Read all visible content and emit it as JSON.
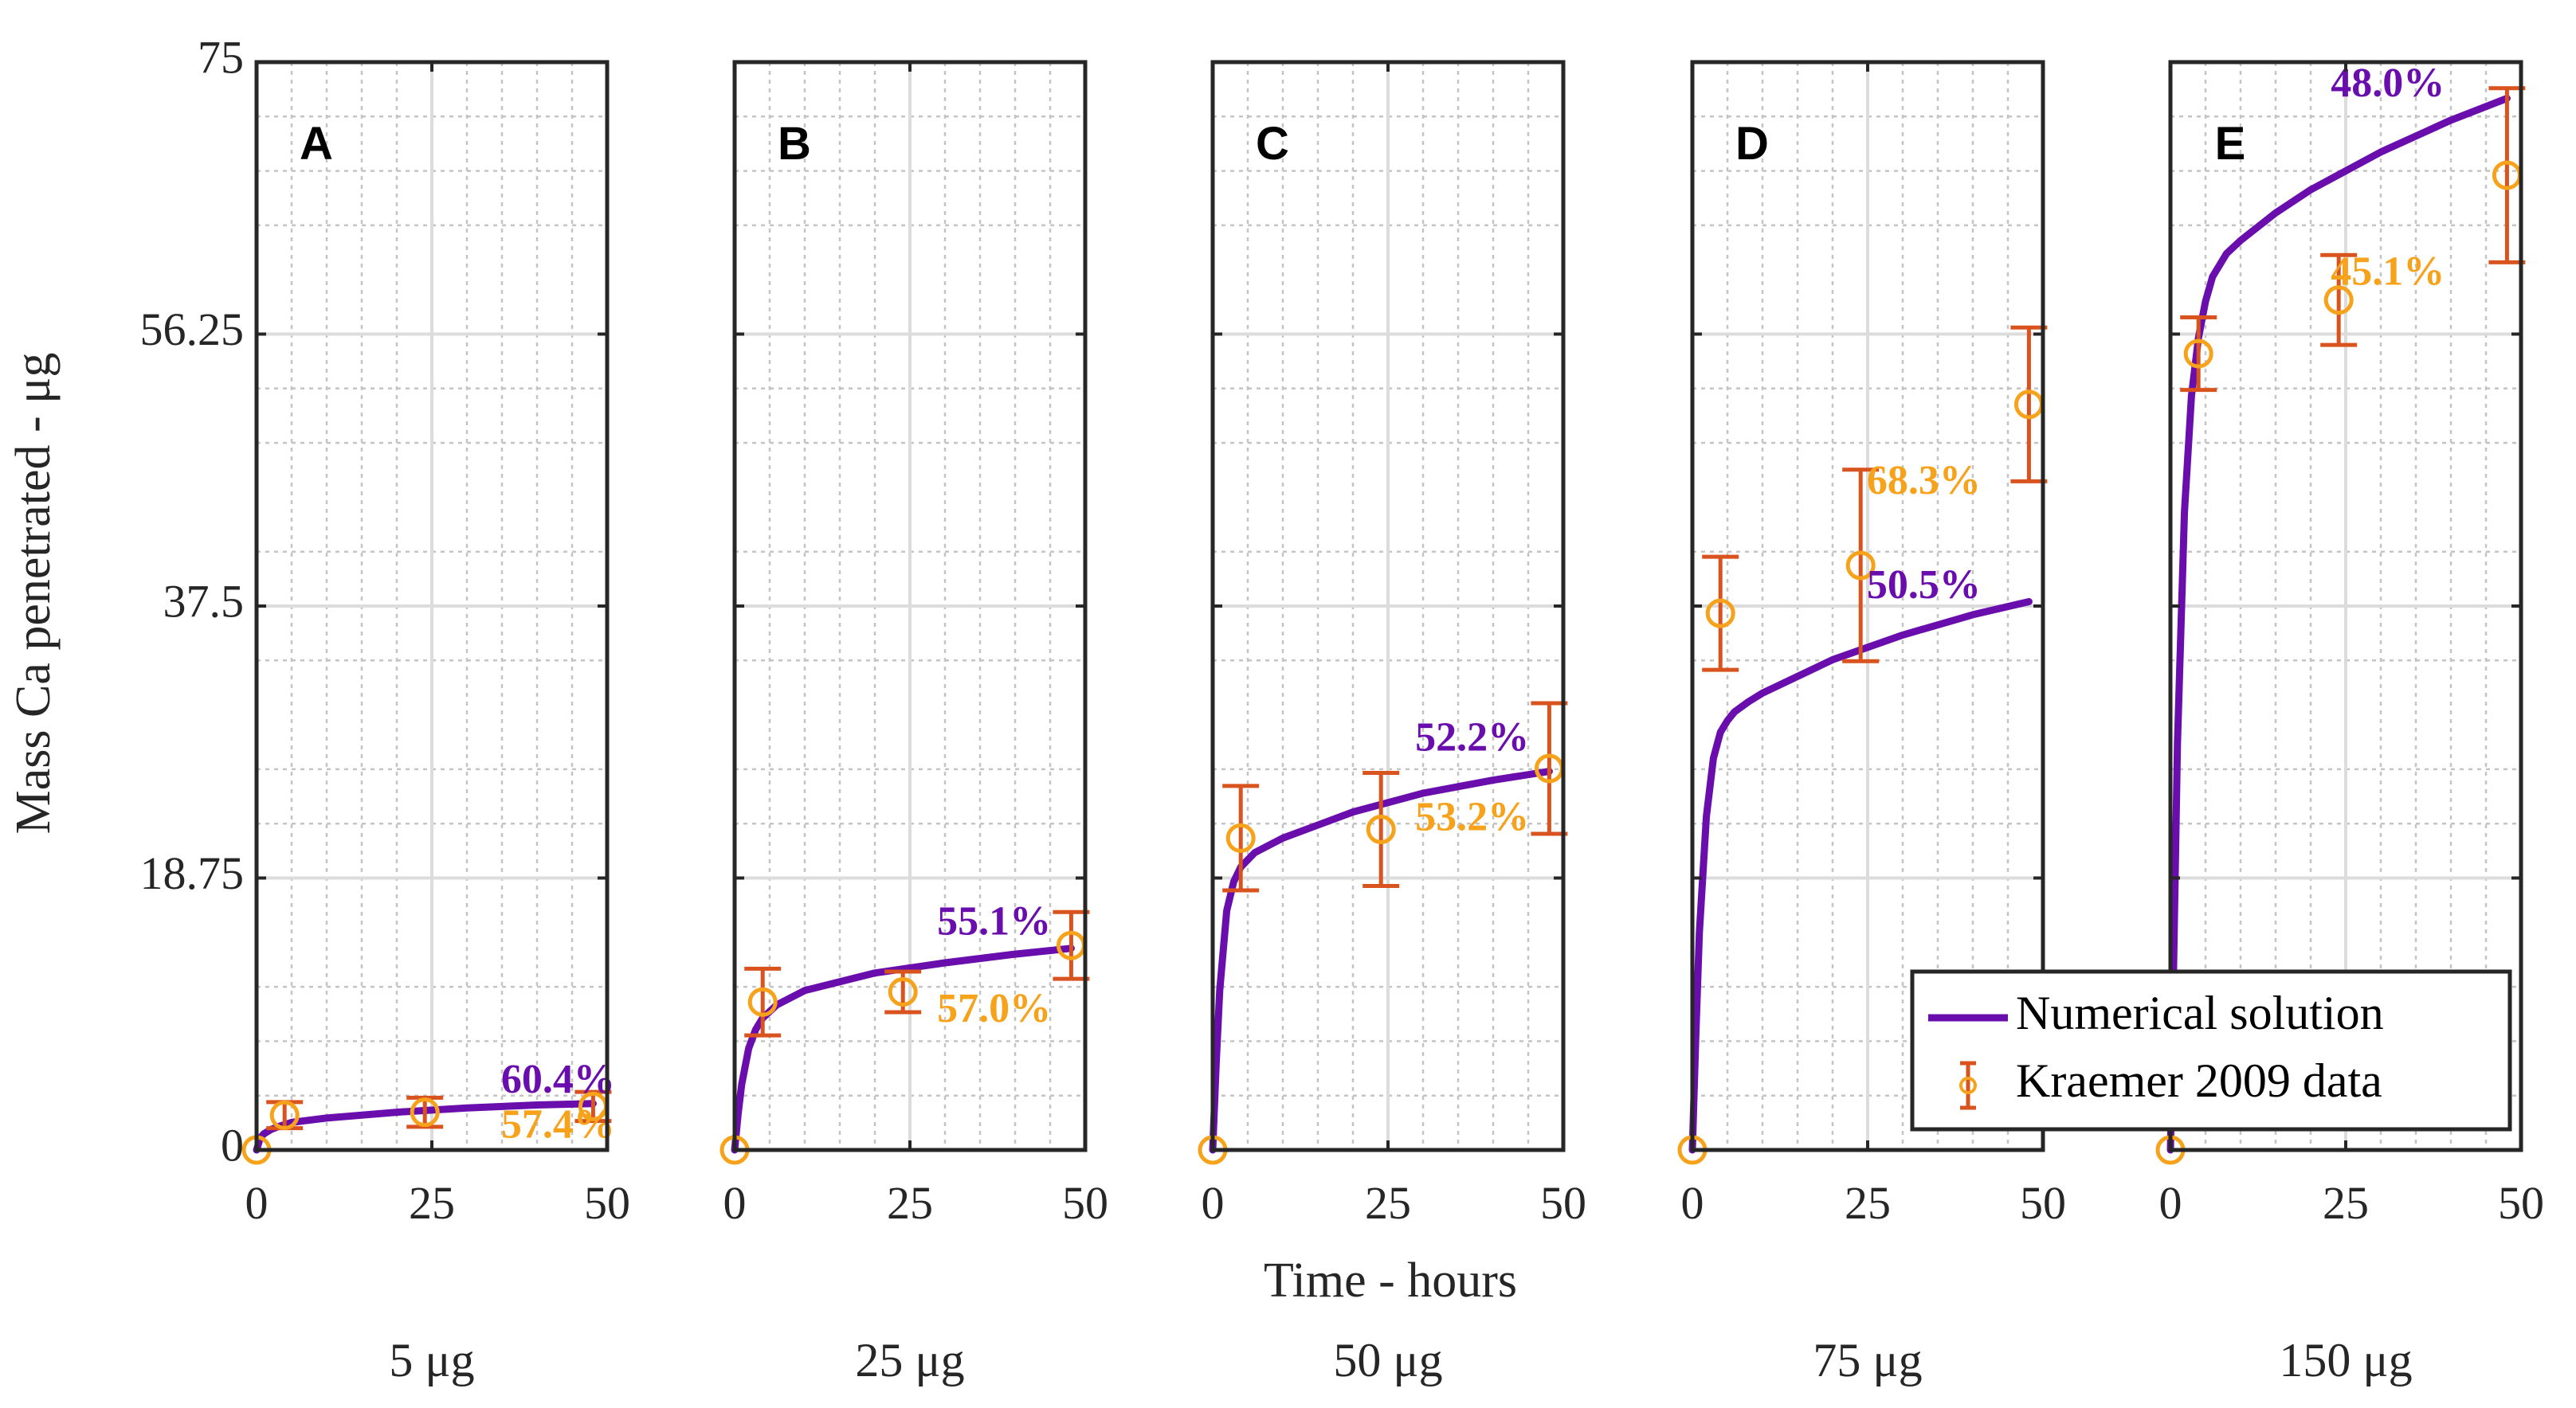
{
  "chart_data": {
    "type": "line",
    "ylabel": "Mass Ca penetrated - μg",
    "xlabel": "Time - hours",
    "ylim": [
      0,
      75
    ],
    "yticks": [
      "0",
      "18.75",
      "37.5",
      "56.25",
      "75"
    ],
    "xlim": [
      0,
      50
    ],
    "xticks": [
      "0",
      "25",
      "50"
    ],
    "grid": true,
    "legend": {
      "placement": "bottom-right of panel E",
      "entries": [
        {
          "name": "Numerical solution",
          "color": "#6a0dad",
          "style": "line"
        },
        {
          "name": "Kraemer 2009 data",
          "color": "#f7a21b",
          "errorbar_color": "#d9531e",
          "style": "errorbar-circle"
        }
      ]
    },
    "panels": [
      {
        "letter": "A",
        "dose_label": "5 μg",
        "numerical": {
          "x": [
            0,
            0.5,
            1,
            2,
            3,
            5,
            10,
            20,
            30,
            40,
            48
          ],
          "y": [
            0,
            0.8,
            1.1,
            1.4,
            1.6,
            1.9,
            2.2,
            2.6,
            2.9,
            3.1,
            3.2
          ]
        },
        "kraemer": [
          {
            "x": 0,
            "y": 0,
            "err": 0
          },
          {
            "x": 4,
            "y": 2.4,
            "err": 0.9
          },
          {
            "x": 24,
            "y": 2.6,
            "err": 1.0
          },
          {
            "x": 48,
            "y": 3.0,
            "err": 1.0
          }
        ],
        "annotations": [
          {
            "text": "60.4%",
            "x": 43,
            "y": 4.6,
            "series": "numerical"
          },
          {
            "text": "57.4%",
            "x": 43,
            "y": 1.5,
            "series": "kraemer"
          }
        ]
      },
      {
        "letter": "B",
        "dose_label": "25 μg",
        "numerical": {
          "x": [
            0,
            0.5,
            1,
            2,
            3,
            4,
            6,
            10,
            20,
            30,
            40,
            48
          ],
          "y": [
            0,
            2.5,
            4.5,
            7.0,
            8.3,
            9.1,
            10.0,
            11.0,
            12.2,
            12.9,
            13.5,
            13.9
          ]
        },
        "kraemer": [
          {
            "x": 0,
            "y": 0,
            "err": 0
          },
          {
            "x": 4,
            "y": 10.2,
            "err": 2.3
          },
          {
            "x": 24,
            "y": 10.9,
            "err": 1.4
          },
          {
            "x": 48,
            "y": 14.1,
            "err": 2.3
          }
        ],
        "annotations": [
          {
            "text": "55.1%",
            "x": 37,
            "y": 15.5,
            "series": "numerical"
          },
          {
            "text": "57.0%",
            "x": 37,
            "y": 9.5,
            "series": "kraemer"
          }
        ]
      },
      {
        "letter": "C",
        "dose_label": "50 μg",
        "numerical": {
          "x": [
            0,
            0.5,
            1,
            2,
            3,
            4,
            6,
            10,
            20,
            30,
            40,
            48
          ],
          "y": [
            0,
            6,
            11,
            16.5,
            18.5,
            19.5,
            20.5,
            21.5,
            23.3,
            24.6,
            25.5,
            26.1
          ]
        },
        "kraemer": [
          {
            "x": 0,
            "y": 0,
            "err": 0
          },
          {
            "x": 4,
            "y": 21.5,
            "err": 3.6
          },
          {
            "x": 24,
            "y": 22.1,
            "err": 3.9
          },
          {
            "x": 48,
            "y": 26.3,
            "err": 4.5
          }
        ],
        "annotations": [
          {
            "text": "52.2%",
            "x": 37,
            "y": 28.2,
            "series": "numerical"
          },
          {
            "text": "53.2%",
            "x": 37,
            "y": 22.7,
            "series": "kraemer"
          }
        ]
      },
      {
        "letter": "D",
        "dose_label": "75 μg",
        "numerical": {
          "x": [
            0,
            0.5,
            1,
            2,
            3,
            4,
            5,
            6,
            8,
            10,
            20,
            30,
            40,
            48
          ],
          "y": [
            0,
            8,
            15,
            23,
            27,
            28.8,
            29.6,
            30.2,
            30.9,
            31.5,
            33.8,
            35.5,
            36.9,
            37.8
          ]
        },
        "kraemer": [
          {
            "x": 0,
            "y": 0,
            "err": 0
          },
          {
            "x": 4,
            "y": 37.0,
            "err": 3.9
          },
          {
            "x": 24,
            "y": 40.3,
            "err": 6.6
          },
          {
            "x": 48,
            "y": 51.4,
            "err": 5.3
          }
        ],
        "annotations": [
          {
            "text": "50.5%",
            "x": 33,
            "y": 38.7,
            "series": "numerical"
          },
          {
            "text": "68.3%",
            "x": 33,
            "y": 45.9,
            "series": "kraemer"
          }
        ]
      },
      {
        "letter": "E",
        "dose_label": "150 μg",
        "numerical": {
          "x": [
            0,
            0.5,
            1,
            2,
            3,
            4,
            5,
            6,
            8,
            10,
            15,
            20,
            30,
            40,
            48
          ],
          "y": [
            0,
            14,
            28,
            44,
            52,
            56,
            58.5,
            60.2,
            61.8,
            62.7,
            64.6,
            66.2,
            68.8,
            71.0,
            72.5
          ]
        },
        "kraemer": [
          {
            "x": 0,
            "y": 0,
            "err": 0
          },
          {
            "x": 4,
            "y": 54.9,
            "err": 2.5
          },
          {
            "x": 24,
            "y": 58.6,
            "err": 3.1
          },
          {
            "x": 48,
            "y": 67.2,
            "err": 6.0
          }
        ],
        "annotations": [
          {
            "text": "48.0%",
            "x": 31,
            "y": 73.3,
            "series": "numerical"
          },
          {
            "text": "45.1%",
            "x": 31,
            "y": 60.3,
            "series": "kraemer"
          }
        ]
      }
    ]
  },
  "colors": {
    "numerical": "#6a0dad",
    "kraemer_marker": "#f7a21b",
    "kraemer_errorbar": "#d9531e",
    "axes": "#262626",
    "grid_major": "#dcdcdc",
    "grid_minor": "#c4c4c4"
  }
}
